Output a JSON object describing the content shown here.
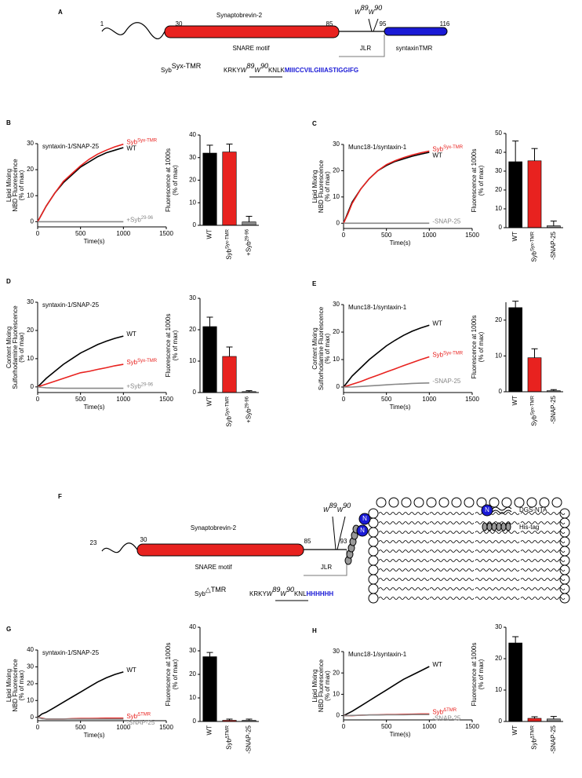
{
  "diagram_a": {
    "panel": "A",
    "title": "Synaptobrevin-2",
    "positions": [
      "1",
      "30",
      "85",
      "95",
      "116"
    ],
    "residues": [
      {
        "letter": "W",
        "sup": "89"
      },
      {
        "letter": "W",
        "sup": "90"
      }
    ],
    "regions": [
      "SNARE motif",
      "JLR",
      "syntaxinTMR"
    ],
    "sequence": {
      "name": "Syb",
      "name_sup": "Syx-TMR",
      "prefix": "KRKY",
      "suffix": "KNLK",
      "tmr": "MIIICCVILGIIIASTIGGIFG"
    }
  },
  "diagram_f": {
    "panel": "F",
    "title": "Synaptobrevin-2",
    "positions": [
      "23",
      "30",
      "85",
      "93"
    ],
    "residues": [
      {
        "letter": "W",
        "sup": "89"
      },
      {
        "letter": "W",
        "sup": "90"
      }
    ],
    "regions": [
      "SNARE motif",
      "JLR"
    ],
    "anchor_symbol": "N",
    "legend": [
      "DGS-NTA",
      "His-tag"
    ],
    "sequence": {
      "name": "Syb",
      "name_sup": "△TMR",
      "prefix": "KRKY",
      "suffix": "KNL",
      "tag": "HHHHHH"
    }
  },
  "chart_data": [
    {
      "type": "line",
      "panel": "B",
      "title": "syntaxin-1/SNAP-25",
      "y_label": [
        "Lipid Mixing",
        "NBD Fluorescence",
        "(% of max)"
      ],
      "x_label": "Time(s)",
      "xlim": [
        0,
        1500
      ],
      "xticks": [
        0,
        500,
        1000,
        1500
      ],
      "ylim": [
        -2,
        30
      ],
      "yticks": [
        0,
        10,
        20,
        30
      ],
      "x": [
        0,
        50,
        100,
        200,
        300,
        400,
        500,
        600,
        700,
        800,
        900,
        1000
      ],
      "series": [
        {
          "name": "WT",
          "color": "#000000",
          "values": [
            0,
            3,
            6,
            11,
            15,
            18,
            21,
            23,
            25,
            26.5,
            27.5,
            28.5
          ]
        },
        {
          "name": "Syb",
          "name_sup": "Syx-TMR",
          "color": "#e8221f",
          "values": [
            0,
            3,
            6,
            11,
            15.5,
            18.5,
            21.5,
            24,
            26,
            27.5,
            28.8,
            29.8
          ]
        },
        {
          "name": "+Syb",
          "name_sup": "29-96",
          "color": "#888888",
          "values": [
            0,
            0,
            0,
            0,
            0,
            0,
            0,
            0,
            0,
            0,
            0,
            0
          ]
        }
      ]
    },
    {
      "type": "bar",
      "y_label": [
        "Fluorescence at 1000s",
        "(% of max)"
      ],
      "categories": [
        "WT",
        "Syb",
        "+Syb"
      ],
      "category_sups": [
        null,
        "Syx-TMR",
        "29-96"
      ],
      "values": [
        32,
        32.5,
        1.5
      ],
      "errors": [
        3.5,
        3.5,
        2.5
      ],
      "colors": [
        "#000000",
        "#e8221f",
        "#888888"
      ],
      "ylim": [
        0,
        40
      ],
      "yticks": [
        0,
        10,
        20,
        30,
        40
      ]
    },
    {
      "type": "line",
      "panel": "C",
      "title": "Munc18-1/syntaxin-1",
      "y_label": [
        "Lipid Mixing",
        "NBD Fluorescence",
        "(% of max)"
      ],
      "x_label": "Time(s)",
      "xlim": [
        0,
        1500
      ],
      "xticks": [
        0,
        500,
        1000,
        1500
      ],
      "ylim": [
        -2,
        30
      ],
      "yticks": [
        0,
        10,
        20,
        30
      ],
      "x": [
        0,
        50,
        100,
        200,
        300,
        400,
        500,
        600,
        700,
        800,
        900,
        1000
      ],
      "series": [
        {
          "name": "WT",
          "color": "#000000",
          "values": [
            0,
            4,
            8,
            13,
            17,
            20,
            22,
            23.5,
            24.5,
            25.5,
            26.3,
            27
          ]
        },
        {
          "name": "Syb",
          "name_sup": "Syx-TMR",
          "color": "#e8221f",
          "values": [
            0,
            3.5,
            7.5,
            13,
            17,
            20,
            22.3,
            23.8,
            25,
            26,
            26.8,
            27.5
          ]
        },
        {
          "name": "-SNAP-25",
          "color": "#888888",
          "values": [
            0,
            0,
            0,
            0,
            0,
            0,
            0,
            0,
            0,
            0,
            0,
            0
          ]
        }
      ]
    },
    {
      "type": "bar",
      "y_label": [
        "Fluorescence at 1000s",
        "(% of max)"
      ],
      "categories": [
        "WT",
        "Syb",
        "-SNAP-25"
      ],
      "category_sups": [
        null,
        "Syx-TMR",
        null
      ],
      "values": [
        35,
        35.5,
        1
      ],
      "errors": [
        11,
        6.5,
        2.5
      ],
      "colors": [
        "#000000",
        "#e8221f",
        "#888888"
      ],
      "ylim": [
        0,
        50
      ],
      "yticks": [
        0,
        10,
        20,
        30,
        40,
        50
      ]
    },
    {
      "type": "line",
      "panel": "D",
      "title": "syntaxin-1/SNAP-25",
      "y_label": [
        "Content Mixing",
        "Sulforhodamine Fluorescence",
        "(% of max)"
      ],
      "x_label": "Time(s)",
      "xlim": [
        0,
        1500
      ],
      "xticks": [
        0,
        500,
        1000,
        1500
      ],
      "ylim": [
        -2,
        30
      ],
      "yticks": [
        0,
        10,
        20,
        30
      ],
      "x": [
        0,
        50,
        100,
        200,
        300,
        400,
        500,
        600,
        700,
        800,
        900,
        1000
      ],
      "series": [
        {
          "name": "WT",
          "color": "#000000",
          "values": [
            0,
            1.5,
            3,
            5.5,
            8,
            10,
            12,
            13.5,
            15,
            16.2,
            17.2,
            18
          ]
        },
        {
          "name": "Syb",
          "name_sup": "Syx-TMR",
          "color": "#e8221f",
          "values": [
            0,
            0.5,
            1,
            2,
            3,
            4,
            5,
            5.5,
            6.2,
            6.8,
            7.5,
            8
          ]
        },
        {
          "name": "+Syb",
          "name_sup": "29-96",
          "color": "#888888",
          "values": [
            0,
            -0.2,
            -0.3,
            -0.4,
            -0.5,
            -0.5,
            -0.5,
            -0.5,
            -0.5,
            -0.5,
            -0.5,
            -0.5
          ]
        }
      ]
    },
    {
      "type": "bar",
      "y_label": [
        "Fluorescence at 1000s",
        "(% of max)"
      ],
      "categories": [
        "WT",
        "Syb",
        "+Syb"
      ],
      "category_sups": [
        null,
        "Syx-TMR",
        "29-96"
      ],
      "values": [
        21,
        11.5,
        0.3
      ],
      "errors": [
        3,
        3,
        0.3
      ],
      "colors": [
        "#000000",
        "#e8221f",
        "#888888"
      ],
      "ylim": [
        0,
        30
      ],
      "yticks": [
        0,
        10,
        20,
        30
      ]
    },
    {
      "type": "line",
      "panel": "E",
      "title": "Munc18-1/syntaxin-1",
      "y_label": [
        "Content Mixing",
        "Sulforhodamine Fluorescence",
        "(% of max)"
      ],
      "x_label": "Time(s)",
      "xlim": [
        0,
        1500
      ],
      "xticks": [
        0,
        500,
        1000,
        1500
      ],
      "ylim": [
        -2,
        30
      ],
      "yticks": [
        0,
        10,
        20,
        30
      ],
      "x": [
        0,
        50,
        100,
        200,
        300,
        400,
        500,
        600,
        700,
        800,
        900,
        1000
      ],
      "series": [
        {
          "name": "WT",
          "color": "#000000",
          "values": [
            0,
            2,
            4,
            7,
            10,
            12.5,
            15,
            17,
            18.8,
            20.3,
            21.5,
            22.5
          ]
        },
        {
          "name": "Syb",
          "name_sup": "Syx-TMR",
          "color": "#e8221f",
          "values": [
            0,
            0.5,
            1,
            2,
            3.2,
            4.3,
            5.5,
            6.6,
            7.8,
            8.9,
            10,
            11
          ]
        },
        {
          "name": "-SNAP-25",
          "color": "#888888",
          "values": [
            0,
            0,
            0,
            0.2,
            0.4,
            0.6,
            0.8,
            1,
            1.1,
            1.3,
            1.4,
            1.5
          ]
        }
      ]
    },
    {
      "type": "bar",
      "y_label": [
        "Fluorescence at 1000s",
        "(% of max)"
      ],
      "categories": [
        "WT",
        "Syb",
        "-SNAP-25"
      ],
      "category_sups": [
        null,
        "Syx-TMR",
        null
      ],
      "values": [
        23.5,
        9.5,
        0.3
      ],
      "errors": [
        1.8,
        2.5,
        0.3
      ],
      "colors": [
        "#000000",
        "#e8221f",
        "#888888"
      ],
      "ylim": [
        0,
        25
      ],
      "yticks": [
        0,
        10,
        20
      ]
    },
    {
      "type": "line",
      "panel": "G",
      "title": "syntaxin-1/SNAP-25",
      "y_label": [
        "Lipid Mixing",
        "NBD Fluorescence",
        "(% of max)"
      ],
      "x_label": "Time(s)",
      "xlim": [
        0,
        1500
      ],
      "xticks": [
        0,
        500,
        1000,
        1500
      ],
      "ylim": [
        -2,
        40
      ],
      "yticks": [
        0,
        10,
        20,
        30,
        40
      ],
      "x": [
        0,
        50,
        100,
        200,
        300,
        400,
        500,
        600,
        700,
        800,
        900,
        1000
      ],
      "series": [
        {
          "name": "WT",
          "color": "#000000",
          "values": [
            0,
            2,
            3,
            6,
            9,
            12,
            15,
            18,
            21,
            23.5,
            25.5,
            27
          ]
        },
        {
          "name": "Syb",
          "name_sup": "ΔTMR",
          "color": "#e8221f",
          "values": [
            0,
            -0.5,
            -1,
            -1,
            -1,
            -0.8,
            -0.7,
            -0.7,
            -0.6,
            -0.5,
            -0.5,
            -0.5
          ]
        },
        {
          "name": "-SNAP-25",
          "color": "#888888",
          "values": [
            0,
            -0.8,
            -1,
            -1,
            -1,
            -1,
            -1,
            -1,
            -1,
            -1,
            -1,
            -1
          ]
        }
      ]
    },
    {
      "type": "bar",
      "y_label": [
        "Fluorescence at 1000s",
        "(% of max)"
      ],
      "categories": [
        "WT",
        "Syb",
        "-SNAP-25"
      ],
      "category_sups": [
        null,
        "ΔTMR",
        null
      ],
      "values": [
        27.5,
        0.5,
        0.5
      ],
      "errors": [
        1.8,
        0.5,
        0.5
      ],
      "colors": [
        "#000000",
        "#e8221f",
        "#888888"
      ],
      "ylim": [
        0,
        40
      ],
      "yticks": [
        0,
        10,
        20,
        30,
        40
      ]
    },
    {
      "type": "line",
      "panel": "H",
      "title": "Munc18-1/syntaxin-1",
      "y_label": [
        "Lipid Mixing",
        "NBD Fluorescence",
        "(% of max)"
      ],
      "x_label": "Time(s)",
      "xlim": [
        0,
        1500
      ],
      "xticks": [
        0,
        500,
        1000,
        1500
      ],
      "ylim": [
        -2,
        30
      ],
      "yticks": [
        0,
        10,
        20,
        30
      ],
      "x": [
        0,
        50,
        100,
        200,
        300,
        400,
        500,
        600,
        700,
        800,
        900,
        1000
      ],
      "series": [
        {
          "name": "WT",
          "color": "#000000",
          "values": [
            0,
            1,
            2,
            4.5,
            7,
            9.5,
            12,
            14.5,
            17,
            19,
            21,
            23
          ]
        },
        {
          "name": "Syb",
          "name_sup": "ΔTMR",
          "color": "#e8221f",
          "values": [
            0,
            0,
            0,
            0.2,
            0.3,
            0.4,
            0.5,
            0.5,
            0.6,
            0.7,
            0.8,
            0.8
          ]
        },
        {
          "name": "-SNAP-25",
          "color": "#888888",
          "values": [
            0,
            0,
            0.1,
            0.2,
            0.3,
            0.3,
            0.4,
            0.4,
            0.4,
            0.5,
            0.5,
            0.5
          ]
        }
      ]
    },
    {
      "type": "bar",
      "y_label": [
        "Fluorescence at 1000s",
        "(% of max)"
      ],
      "categories": [
        "WT",
        "Syb",
        "-SNAP-25"
      ],
      "category_sups": [
        null,
        "ΔTMR",
        null
      ],
      "values": [
        25,
        1,
        0.8
      ],
      "errors": [
        2,
        0.5,
        0.8
      ],
      "colors": [
        "#000000",
        "#e8221f",
        "#888888"
      ],
      "ylim": [
        0,
        30
      ],
      "yticks": [
        0,
        10,
        20,
        30
      ]
    }
  ]
}
